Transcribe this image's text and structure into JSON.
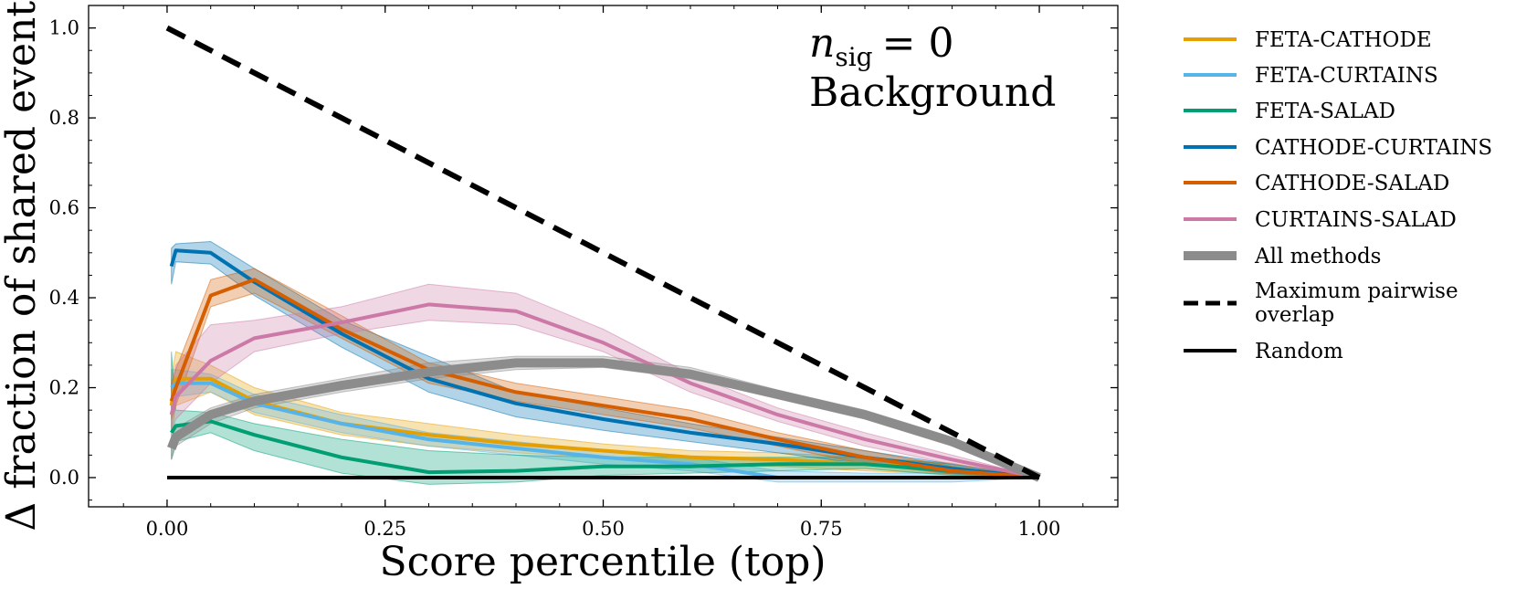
{
  "chart_data": {
    "type": "line",
    "title": "",
    "xlabel": "Score percentile (top)",
    "ylabel": "Δ fraction of shared events",
    "xlim": [
      -0.09,
      1.09
    ],
    "ylim": [
      -0.065,
      1.05
    ],
    "x_ticks": [
      0.0,
      0.25,
      0.5,
      0.75,
      1.0
    ],
    "x_tick_labels": [
      "0.00",
      "0.25",
      "0.50",
      "0.75",
      "1.00"
    ],
    "y_ticks": [
      0.0,
      0.2,
      0.4,
      0.6,
      0.8,
      1.0
    ],
    "y_tick_labels": [
      "0.0",
      "0.2",
      "0.4",
      "0.6",
      "0.8",
      "1.0"
    ],
    "grid": false,
    "legend_position": "outside-right",
    "annotation": {
      "symbol": "n",
      "subscript": "sig",
      "equals": "= 0",
      "line2": "Background"
    },
    "series": [
      {
        "name": "FETA-CATHODE",
        "color": "#E69F00",
        "width": 4,
        "x": [
          0.005,
          0.01,
          0.05,
          0.1,
          0.2,
          0.3,
          0.4,
          0.5,
          0.6,
          0.7,
          0.8,
          0.9,
          1.0
        ],
        "y": [
          0.16,
          0.22,
          0.22,
          0.17,
          0.12,
          0.095,
          0.075,
          0.06,
          0.045,
          0.04,
          0.03,
          0.02,
          0.0
        ],
        "lower": [
          0.1,
          0.16,
          0.19,
          0.14,
          0.095,
          0.07,
          0.055,
          0.045,
          0.03,
          0.025,
          0.015,
          0.008,
          0.0
        ],
        "upper": [
          0.22,
          0.28,
          0.25,
          0.2,
          0.145,
          0.12,
          0.095,
          0.075,
          0.06,
          0.055,
          0.045,
          0.032,
          0.0
        ]
      },
      {
        "name": "FETA-CURTAINS",
        "color": "#56B4E9",
        "width": 4,
        "x": [
          0.005,
          0.01,
          0.05,
          0.1,
          0.2,
          0.3,
          0.4,
          0.5,
          0.6,
          0.7,
          0.8,
          0.9,
          1.0
        ],
        "y": [
          0.2,
          0.21,
          0.21,
          0.165,
          0.12,
          0.085,
          0.065,
          0.045,
          0.03,
          0.0,
          0.0,
          0.0,
          0.0
        ],
        "lower": [
          0.16,
          0.18,
          0.19,
          0.145,
          0.1,
          0.07,
          0.05,
          0.03,
          0.015,
          -0.01,
          -0.01,
          -0.01,
          0.0
        ],
        "upper": [
          0.24,
          0.24,
          0.23,
          0.185,
          0.14,
          0.1,
          0.08,
          0.06,
          0.045,
          0.015,
          0.01,
          0.01,
          0.0
        ]
      },
      {
        "name": "FETA-SALAD",
        "color": "#009E73",
        "width": 4,
        "x": [
          0.005,
          0.01,
          0.05,
          0.1,
          0.2,
          0.3,
          0.4,
          0.5,
          0.6,
          0.7,
          0.8,
          0.9,
          1.0
        ],
        "y": [
          0.1,
          0.115,
          0.125,
          0.095,
          0.045,
          0.012,
          0.015,
          0.025,
          0.025,
          0.03,
          0.03,
          0.015,
          0.0
        ],
        "lower": [
          0.04,
          0.08,
          0.1,
          0.06,
          0.01,
          -0.015,
          -0.01,
          0.005,
          0.01,
          0.015,
          0.02,
          0.005,
          0.0
        ],
        "upper": [
          0.28,
          0.15,
          0.145,
          0.12,
          0.085,
          0.06,
          0.05,
          0.045,
          0.045,
          0.045,
          0.045,
          0.03,
          0.0
        ]
      },
      {
        "name": "CATHODE-CURTAINS",
        "color": "#0072B2",
        "width": 4,
        "x": [
          0.005,
          0.01,
          0.05,
          0.1,
          0.2,
          0.3,
          0.4,
          0.5,
          0.6,
          0.7,
          0.8,
          0.9,
          1.0
        ],
        "y": [
          0.47,
          0.505,
          0.5,
          0.435,
          0.32,
          0.22,
          0.165,
          0.13,
          0.1,
          0.075,
          0.045,
          0.02,
          0.0
        ],
        "lower": [
          0.43,
          0.48,
          0.475,
          0.405,
          0.29,
          0.19,
          0.135,
          0.105,
          0.08,
          0.055,
          0.03,
          0.01,
          0.0
        ],
        "upper": [
          0.51,
          0.52,
          0.525,
          0.465,
          0.35,
          0.27,
          0.19,
          0.155,
          0.12,
          0.09,
          0.06,
          0.03,
          0.0
        ]
      },
      {
        "name": "CATHODE-SALAD",
        "color": "#D55E00",
        "width": 4,
        "x": [
          0.005,
          0.01,
          0.05,
          0.1,
          0.2,
          0.3,
          0.4,
          0.5,
          0.6,
          0.7,
          0.8,
          0.9,
          1.0
        ],
        "y": [
          0.17,
          0.2,
          0.405,
          0.44,
          0.33,
          0.24,
          0.19,
          0.16,
          0.13,
          0.085,
          0.045,
          0.015,
          0.0
        ],
        "lower": [
          0.13,
          0.16,
          0.38,
          0.41,
          0.31,
          0.21,
          0.17,
          0.14,
          0.11,
          0.07,
          0.03,
          0.008,
          0.0
        ],
        "upper": [
          0.21,
          0.24,
          0.44,
          0.465,
          0.36,
          0.255,
          0.21,
          0.18,
          0.15,
          0.1,
          0.06,
          0.025,
          0.0
        ]
      },
      {
        "name": "CURTAINS-SALAD",
        "color": "#CC79A7",
        "width": 4,
        "x": [
          0.005,
          0.01,
          0.05,
          0.1,
          0.2,
          0.3,
          0.4,
          0.5,
          0.6,
          0.7,
          0.8,
          0.9,
          1.0
        ],
        "y": [
          0.14,
          0.18,
          0.26,
          0.31,
          0.345,
          0.385,
          0.37,
          0.3,
          0.21,
          0.14,
          0.085,
          0.04,
          0.0
        ],
        "lower": [
          0.1,
          0.13,
          0.21,
          0.28,
          0.32,
          0.35,
          0.34,
          0.28,
          0.19,
          0.125,
          0.07,
          0.03,
          0.0
        ],
        "upper": [
          0.19,
          0.25,
          0.34,
          0.35,
          0.38,
          0.43,
          0.41,
          0.33,
          0.23,
          0.155,
          0.1,
          0.05,
          0.0
        ]
      },
      {
        "name": "All methods",
        "color": "#8c8c8c",
        "width": 10,
        "x": [
          0.005,
          0.01,
          0.05,
          0.1,
          0.2,
          0.3,
          0.4,
          0.5,
          0.6,
          0.7,
          0.8,
          0.9,
          1.0
        ],
        "y": [
          0.065,
          0.09,
          0.14,
          0.17,
          0.205,
          0.235,
          0.255,
          0.255,
          0.23,
          0.185,
          0.14,
          0.08,
          0.0
        ],
        "lower": [
          0.04,
          0.07,
          0.12,
          0.155,
          0.19,
          0.22,
          0.24,
          0.245,
          0.22,
          0.175,
          0.13,
          0.07,
          0.0
        ],
        "upper": [
          0.09,
          0.11,
          0.155,
          0.185,
          0.22,
          0.255,
          0.27,
          0.27,
          0.245,
          0.195,
          0.15,
          0.09,
          0.0
        ]
      },
      {
        "name": "Maximum pairwise overlap",
        "color": "#000000",
        "width": 6,
        "dash": true,
        "x": [
          0.0,
          1.0
        ],
        "y": [
          1.0,
          0.0
        ]
      },
      {
        "name": "Random",
        "color": "#000000",
        "width": 4,
        "x": [
          0.0,
          1.0
        ],
        "y": [
          0.0,
          0.0
        ]
      }
    ],
    "legend": [
      {
        "label": "FETA-CATHODE",
        "color": "#E69F00",
        "width": 4
      },
      {
        "label": "FETA-CURTAINS",
        "color": "#56B4E9",
        "width": 4
      },
      {
        "label": "FETA-SALAD",
        "color": "#009E73",
        "width": 4
      },
      {
        "label": "CATHODE-CURTAINS",
        "color": "#0072B2",
        "width": 4
      },
      {
        "label": "CATHODE-SALAD",
        "color": "#D55E00",
        "width": 4
      },
      {
        "label": "CURTAINS-SALAD",
        "color": "#CC79A7",
        "width": 4
      },
      {
        "label": "All methods",
        "color": "#8c8c8c",
        "width": 10
      },
      {
        "label": "Maximum pairwise",
        "label2": "overlap",
        "color": "#000000",
        "width": 5,
        "dash": true
      },
      {
        "label": "Random",
        "color": "#000000",
        "width": 4
      }
    ]
  }
}
